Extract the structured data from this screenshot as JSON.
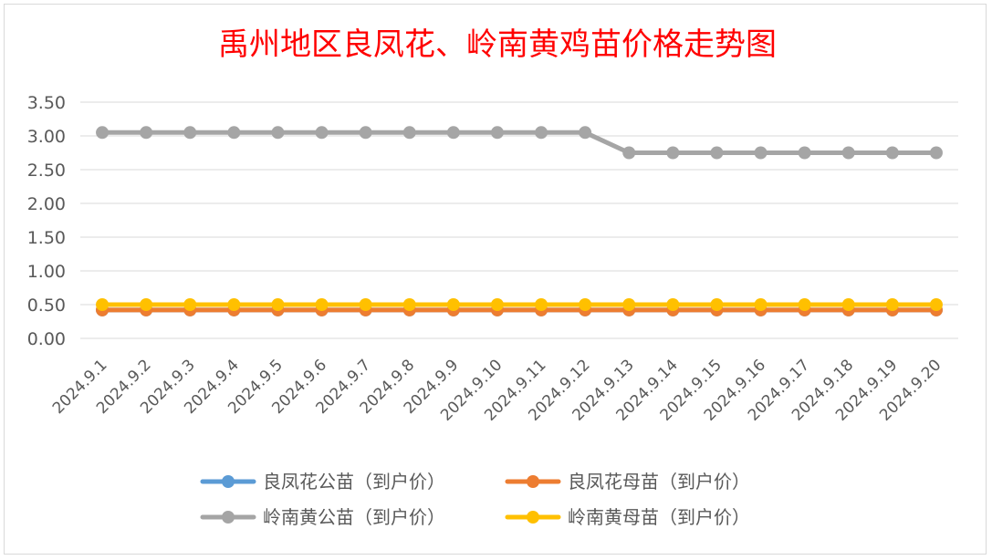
{
  "chart_data": {
    "type": "line",
    "title": "禹州地区良凤花、岭南黄鸡苗价格走势图",
    "xlabel": "",
    "ylabel": "",
    "categories": [
      "2024.9.1",
      "2024.9.2",
      "2024.9.3",
      "2024.9.4",
      "2024.9.5",
      "2024.9.6",
      "2024.9.7",
      "2024.9.8",
      "2024.9.9",
      "2024.9.10",
      "2024.9.11",
      "2024.9.12",
      "2024.9.13",
      "2024.9.14",
      "2024.9.15",
      "2024.9.16",
      "2024.9.17",
      "2024.9.18",
      "2024.9.19",
      "2024.9.20"
    ],
    "y_ticks": [
      "0.00",
      "0.50",
      "1.00",
      "1.50",
      "2.00",
      "2.50",
      "3.00",
      "3.50"
    ],
    "ylim": [
      0,
      3.5
    ],
    "grid": true,
    "legend_position": "bottom",
    "series": [
      {
        "name": "良凤花公苗（到户价）",
        "color": "#5b9bd5",
        "values": [
          0.42,
          0.42,
          0.42,
          0.42,
          0.42,
          0.42,
          0.42,
          0.42,
          0.42,
          0.42,
          0.42,
          0.42,
          0.42,
          0.42,
          0.42,
          0.42,
          0.42,
          0.42,
          0.42,
          0.42
        ]
      },
      {
        "name": "良凤花母苗（到户价）",
        "color": "#ed7d31",
        "values": [
          0.42,
          0.42,
          0.42,
          0.42,
          0.42,
          0.42,
          0.42,
          0.42,
          0.42,
          0.42,
          0.42,
          0.42,
          0.42,
          0.42,
          0.42,
          0.42,
          0.42,
          0.42,
          0.42,
          0.42
        ]
      },
      {
        "name": "岭南黄公苗（到户价）",
        "color": "#a5a5a5",
        "values": [
          3.05,
          3.05,
          3.05,
          3.05,
          3.05,
          3.05,
          3.05,
          3.05,
          3.05,
          3.05,
          3.05,
          3.05,
          2.75,
          2.75,
          2.75,
          2.75,
          2.75,
          2.75,
          2.75,
          2.75
        ]
      },
      {
        "name": "岭南黄母苗（到户价）",
        "color": "#ffc000",
        "values": [
          0.5,
          0.5,
          0.5,
          0.5,
          0.5,
          0.5,
          0.5,
          0.5,
          0.5,
          0.5,
          0.5,
          0.5,
          0.5,
          0.5,
          0.5,
          0.5,
          0.5,
          0.5,
          0.5,
          0.5
        ]
      }
    ]
  }
}
